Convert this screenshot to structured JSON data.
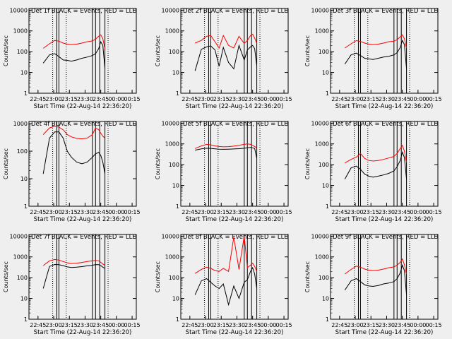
{
  "colors": {
    "events": "#000000",
    "lld": "#ff0000",
    "background": "#efefef"
  },
  "shared": {
    "ylabel": "Counts/sec",
    "xlabel": "Start Time (22-Aug-14 22:36:20)",
    "x_tick_labels": [
      "22:45",
      "23:00",
      "23:15",
      "23:30",
      "23:45",
      "00:00",
      "00:15"
    ],
    "y_tick_labels": [
      "1",
      "10",
      "100",
      "1000",
      "10000"
    ]
  },
  "chart_data": [
    {
      "type": "line",
      "title": "Det 1f BLACK = Events, RED = LLD",
      "ylabel": "Counts/sec",
      "xlabel": "Start Time (22-Aug-14 22:36:20)",
      "yscale": "log",
      "ylim": [
        1,
        12000
      ],
      "x": [
        "22:50",
        "22:56",
        "23:01",
        "23:05",
        "23:09",
        "23:13",
        "23:17",
        "23:22",
        "23:27",
        "23:32",
        "23:37",
        "23:40",
        "23:43",
        "23:45",
        "23:47",
        "23:49"
      ],
      "series": [
        {
          "name": "Events",
          "color": "#000000",
          "values": [
            28,
            70,
            80,
            58,
            40,
            38,
            35,
            40,
            48,
            55,
            65,
            80,
            140,
            300,
            200,
            15
          ]
        },
        {
          "name": "LLD",
          "color": "#ff0000",
          "values": [
            145,
            240,
            350,
            320,
            260,
            230,
            220,
            230,
            260,
            300,
            330,
            400,
            550,
            650,
            420,
            140
          ]
        }
      ]
    },
    {
      "type": "line",
      "title": "Det 2f BLACK = Events, RED = LLD",
      "ylabel": "Counts/sec",
      "xlabel": "Start Time (22-Aug-14 22:36:20)",
      "yscale": "log",
      "ylim": [
        1,
        12000
      ],
      "x": [
        "22:50",
        "22:56",
        "23:01",
        "23:05",
        "23:09",
        "23:13",
        "23:17",
        "23:22",
        "23:27",
        "23:32",
        "23:37",
        "23:40",
        "23:43",
        "23:45",
        "23:47",
        "23:49"
      ],
      "series": [
        {
          "name": "Events",
          "color": "#000000",
          "values": [
            12,
            130,
            170,
            190,
            120,
            20,
            160,
            30,
            15,
            200,
            40,
            120,
            170,
            200,
            140,
            20
          ]
        },
        {
          "name": "LLD",
          "color": "#ff0000",
          "values": [
            260,
            350,
            550,
            600,
            300,
            150,
            600,
            200,
            150,
            550,
            250,
            350,
            600,
            700,
            450,
            250
          ]
        }
      ]
    },
    {
      "type": "line",
      "title": "Det 3f BLACK = Events, RED = LLD",
      "ylabel": "Counts/sec",
      "xlabel": "Start Time (22-Aug-14 22:36:20)",
      "yscale": "log",
      "ylim": [
        1,
        12000
      ],
      "x": [
        "22:50",
        "22:56",
        "23:01",
        "23:05",
        "23:09",
        "23:13",
        "23:17",
        "23:22",
        "23:27",
        "23:32",
        "23:37",
        "23:40",
        "23:43",
        "23:45",
        "23:47",
        "23:49"
      ],
      "series": [
        {
          "name": "Events",
          "color": "#000000",
          "values": [
            25,
            70,
            85,
            65,
            48,
            45,
            42,
            48,
            55,
            60,
            70,
            90,
            160,
            350,
            220,
            15
          ]
        },
        {
          "name": "LLD",
          "color": "#ff0000",
          "values": [
            150,
            240,
            340,
            310,
            260,
            230,
            220,
            230,
            260,
            300,
            320,
            380,
            520,
            650,
            420,
            150
          ]
        }
      ]
    },
    {
      "type": "line",
      "title": "Det 4f BLACK = Events, RED = LLD",
      "ylabel": "Counts/sec",
      "xlabel": "Start Time (22-Aug-14 22:36:20)",
      "yscale": "log",
      "ylim": [
        1,
        1200
      ],
      "x": [
        "22:50",
        "22:56",
        "23:01",
        "23:05",
        "23:09",
        "23:13",
        "23:17",
        "23:22",
        "23:27",
        "23:32",
        "23:37",
        "23:40",
        "23:43",
        "23:45",
        "23:47",
        "23:49"
      ],
      "series": [
        {
          "name": "Events",
          "color": "#000000",
          "values": [
            15,
            300,
            500,
            500,
            300,
            100,
            60,
            40,
            35,
            40,
            60,
            80,
            90,
            70,
            40,
            15
          ]
        },
        {
          "name": "LLD",
          "color": "#ff0000",
          "values": [
            400,
            700,
            800,
            750,
            600,
            400,
            330,
            290,
            280,
            300,
            400,
            700,
            600,
            450,
            350,
            300
          ]
        }
      ]
    },
    {
      "type": "line",
      "title": "Det 5f BLACK = Events, RED = LLD",
      "ylabel": "Counts/sec",
      "xlabel": "Start Time (22-Aug-14 22:36:20)",
      "yscale": "log",
      "ylim": [
        1,
        12000
      ],
      "x": [
        "22:50",
        "22:56",
        "23:01",
        "23:05",
        "23:09",
        "23:13",
        "23:17",
        "23:22",
        "23:27",
        "23:32",
        "23:37",
        "23:40",
        "23:43",
        "23:45",
        "23:47",
        "23:49"
      ],
      "series": [
        {
          "name": "Events",
          "color": "#000000",
          "values": [
            500,
            580,
            620,
            610,
            580,
            560,
            550,
            560,
            570,
            590,
            620,
            650,
            680,
            650,
            600,
            200
          ]
        },
        {
          "name": "LLD",
          "color": "#ff0000",
          "values": [
            600,
            800,
            950,
            900,
            800,
            750,
            720,
            740,
            780,
            850,
            950,
            1000,
            950,
            850,
            750,
            650
          ]
        }
      ]
    },
    {
      "type": "line",
      "title": "Det 6f BLACK = Events, RED = LLD",
      "ylabel": "Counts/sec",
      "xlabel": "Start Time (22-Aug-14 22:36:20)",
      "yscale": "log",
      "ylim": [
        1,
        12000
      ],
      "x": [
        "22:50",
        "22:56",
        "23:01",
        "23:05",
        "23:09",
        "23:13",
        "23:17",
        "23:22",
        "23:27",
        "23:32",
        "23:37",
        "23:40",
        "23:43",
        "23:45",
        "23:47",
        "23:49"
      ],
      "series": [
        {
          "name": "Events",
          "color": "#000000",
          "values": [
            20,
            70,
            85,
            60,
            35,
            28,
            25,
            28,
            32,
            38,
            50,
            80,
            160,
            400,
            220,
            20
          ]
        },
        {
          "name": "LLD",
          "color": "#ff0000",
          "values": [
            120,
            180,
            230,
            350,
            200,
            160,
            150,
            160,
            180,
            210,
            250,
            350,
            600,
            850,
            450,
            130
          ]
        }
      ]
    },
    {
      "type": "line",
      "title": "Det 7f BLACK = Events, RED = LLD",
      "ylabel": "Counts/sec",
      "xlabel": "Start Time (22-Aug-14 22:36:20)",
      "yscale": "log",
      "ylim": [
        1,
        12000
      ],
      "x": [
        "22:50",
        "22:56",
        "23:01",
        "23:05",
        "23:09",
        "23:13",
        "23:17",
        "23:22",
        "23:27",
        "23:32",
        "23:37",
        "23:40",
        "23:43",
        "23:45",
        "23:47",
        "23:49"
      ],
      "series": [
        {
          "name": "Events",
          "color": "#000000",
          "values": [
            30,
            350,
            430,
            420,
            380,
            330,
            310,
            320,
            340,
            370,
            400,
            420,
            420,
            380,
            320,
            280
          ]
        },
        {
          "name": "LLD",
          "color": "#ff0000",
          "values": [
            380,
            650,
            750,
            700,
            600,
            520,
            480,
            500,
            540,
            600,
            650,
            680,
            650,
            550,
            450,
            400
          ]
        }
      ]
    },
    {
      "type": "line",
      "title": "Det 8f BLACK = Events, RED = LLD",
      "ylabel": "Counts/sec",
      "xlabel": "Start Time (22-Aug-14 22:36:20)",
      "yscale": "log",
      "ylim": [
        1,
        12000
      ],
      "x": [
        "22:50",
        "22:56",
        "23:01",
        "23:05",
        "23:09",
        "23:13",
        "23:17",
        "23:22",
        "23:27",
        "23:32",
        "23:37",
        "23:40",
        "23:43",
        "23:45",
        "23:47",
        "23:49"
      ],
      "series": [
        {
          "name": "Events",
          "color": "#000000",
          "values": [
            15,
            70,
            90,
            60,
            40,
            30,
            50,
            5,
            40,
            10,
            60,
            80,
            200,
            300,
            150,
            30
          ]
        },
        {
          "name": "LLD",
          "color": "#ff0000",
          "values": [
            160,
            250,
            320,
            280,
            220,
            200,
            280,
            200,
            9000,
            250,
            10000,
            300,
            400,
            500,
            350,
            200
          ]
        }
      ]
    },
    {
      "type": "line",
      "title": "Det 9f BLACK = Events, RED = LLD",
      "ylabel": "Counts/sec",
      "xlabel": "Start Time (22-Aug-14 22:36:20)",
      "yscale": "log",
      "ylim": [
        1,
        12000
      ],
      "x": [
        "22:50",
        "22:56",
        "23:01",
        "23:05",
        "23:09",
        "23:13",
        "23:17",
        "23:22",
        "23:27",
        "23:32",
        "23:37",
        "23:40",
        "23:43",
        "23:45",
        "23:47",
        "23:49"
      ],
      "series": [
        {
          "name": "Events",
          "color": "#000000",
          "values": [
            25,
            70,
            90,
            65,
            45,
            40,
            38,
            42,
            50,
            55,
            65,
            90,
            170,
            400,
            220,
            15
          ]
        },
        {
          "name": "LLD",
          "color": "#ff0000",
          "values": [
            150,
            250,
            360,
            320,
            260,
            230,
            220,
            230,
            260,
            300,
            330,
            400,
            550,
            800,
            420,
            150
          ]
        }
      ]
    }
  ]
}
